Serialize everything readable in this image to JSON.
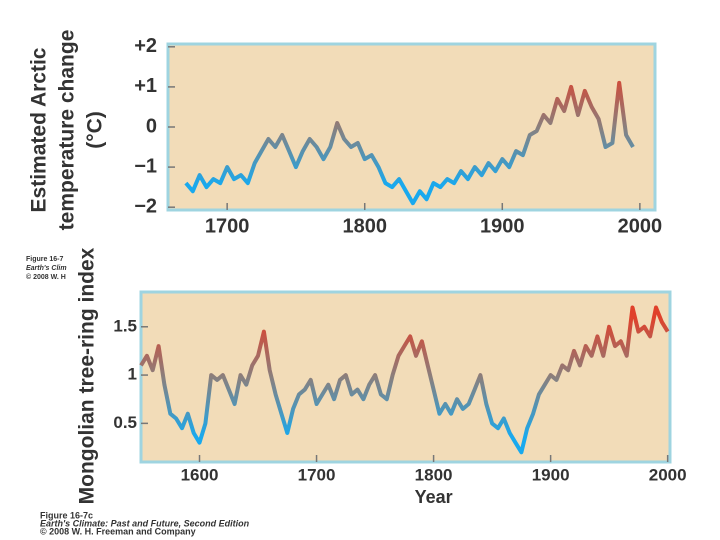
{
  "chart_data": [
    {
      "type": "line",
      "ylabel": [
        "Estimated Arctic",
        "temperature change",
        "(°C)"
      ],
      "caption": [
        "Figure 16-7",
        "Earth's Clim",
        "© 2008 W. H"
      ],
      "x": [
        1670,
        1675,
        1680,
        1685,
        1690,
        1695,
        1700,
        1705,
        1710,
        1715,
        1720,
        1725,
        1730,
        1735,
        1740,
        1745,
        1750,
        1755,
        1760,
        1765,
        1770,
        1775,
        1780,
        1785,
        1790,
        1795,
        1800,
        1805,
        1810,
        1815,
        1820,
        1825,
        1830,
        1835,
        1840,
        1845,
        1850,
        1855,
        1860,
        1865,
        1870,
        1875,
        1880,
        1885,
        1890,
        1895,
        1900,
        1905,
        1910,
        1915,
        1920,
        1925,
        1930,
        1935,
        1940,
        1945,
        1950,
        1955,
        1960,
        1965,
        1970,
        1975,
        1980,
        1985,
        1990,
        1995
      ],
      "values": [
        -1.4,
        -1.6,
        -1.2,
        -1.5,
        -1.3,
        -1.4,
        -1.0,
        -1.3,
        -1.2,
        -1.4,
        -0.9,
        -0.6,
        -0.3,
        -0.5,
        -0.2,
        -0.6,
        -1.0,
        -0.6,
        -0.3,
        -0.5,
        -0.8,
        -0.5,
        0.1,
        -0.3,
        -0.5,
        -0.4,
        -0.8,
        -0.7,
        -1.0,
        -1.4,
        -1.5,
        -1.3,
        -1.6,
        -1.9,
        -1.6,
        -1.8,
        -1.4,
        -1.5,
        -1.3,
        -1.4,
        -1.1,
        -1.3,
        -1.0,
        -1.2,
        -0.9,
        -1.1,
        -0.8,
        -1.0,
        -0.6,
        -0.7,
        -0.2,
        -0.1,
        0.3,
        0.1,
        0.7,
        0.4,
        1.0,
        0.3,
        0.9,
        0.5,
        0.2,
        -0.5,
        -0.4,
        1.1,
        -0.2,
        -0.5
      ],
      "xlim": [
        1657,
        2011
      ],
      "ylim": [
        -2.07,
        2.07
      ],
      "xticks": [
        1700,
        1800,
        1900,
        2000
      ],
      "yticks": [
        {
          "value": 2,
          "label": "+2"
        },
        {
          "value": 1,
          "label": "+1"
        },
        0,
        {
          "value": -1,
          "label": "−1"
        },
        {
          "value": -2,
          "label": "−2"
        }
      ],
      "line_gradient": [
        "#e0412b",
        "#8a7f7d",
        "#19a9ee"
      ],
      "background": "#f2dcb8",
      "border": "#9fd4e0"
    },
    {
      "type": "line",
      "ylabel": [
        "Mongolian tree-ring index"
      ],
      "xlabel": "Year",
      "caption": [
        "Figure 16-7c",
        "Earth's Climate: Past and Future, Second Edition",
        "© 2008 W. H. Freeman and Company"
      ],
      "x": [
        1550,
        1555,
        1560,
        1565,
        1570,
        1575,
        1580,
        1585,
        1590,
        1595,
        1600,
        1605,
        1610,
        1615,
        1620,
        1625,
        1630,
        1635,
        1640,
        1645,
        1650,
        1655,
        1660,
        1665,
        1670,
        1675,
        1680,
        1685,
        1690,
        1695,
        1700,
        1705,
        1710,
        1715,
        1720,
        1725,
        1730,
        1735,
        1740,
        1745,
        1750,
        1755,
        1760,
        1765,
        1770,
        1775,
        1780,
        1785,
        1790,
        1795,
        1800,
        1805,
        1810,
        1815,
        1820,
        1825,
        1830,
        1835,
        1840,
        1845,
        1850,
        1855,
        1860,
        1865,
        1870,
        1875,
        1880,
        1885,
        1890,
        1895,
        1900,
        1905,
        1910,
        1915,
        1920,
        1925,
        1930,
        1935,
        1940,
        1945,
        1950,
        1955,
        1960,
        1965,
        1970,
        1975,
        1980,
        1985,
        1990,
        1995,
        2000
      ],
      "values": [
        1.1,
        1.2,
        1.05,
        1.3,
        0.9,
        0.6,
        0.55,
        0.45,
        0.6,
        0.4,
        0.3,
        0.5,
        1.0,
        0.95,
        1.0,
        0.85,
        0.7,
        1.0,
        0.9,
        1.1,
        1.2,
        1.45,
        1.05,
        0.8,
        0.6,
        0.4,
        0.65,
        0.8,
        0.85,
        0.95,
        0.7,
        0.8,
        0.9,
        0.75,
        0.95,
        1.0,
        0.8,
        0.85,
        0.75,
        0.9,
        1.0,
        0.8,
        0.75,
        1.0,
        1.2,
        1.3,
        1.4,
        1.2,
        1.35,
        1.1,
        0.85,
        0.6,
        0.7,
        0.6,
        0.75,
        0.65,
        0.7,
        0.85,
        1.0,
        0.7,
        0.5,
        0.45,
        0.55,
        0.4,
        0.3,
        0.2,
        0.45,
        0.6,
        0.8,
        0.9,
        1.0,
        0.95,
        1.1,
        1.05,
        1.25,
        1.1,
        1.3,
        1.2,
        1.4,
        1.2,
        1.5,
        1.3,
        1.35,
        1.2,
        1.7,
        1.45,
        1.5,
        1.4,
        1.7,
        1.55,
        1.45
      ],
      "xlim": [
        1550,
        2002
      ],
      "ylim": [
        0.1,
        1.86
      ],
      "xticks": [
        1600,
        1700,
        1800,
        1900,
        2000
      ],
      "yticks": [
        0.5,
        1,
        1.5
      ],
      "line_gradient": [
        "#e0412b",
        "#8a7f7d",
        "#19a9ee"
      ],
      "background": "#f2dcb8",
      "border": "#9fd4e0"
    }
  ]
}
